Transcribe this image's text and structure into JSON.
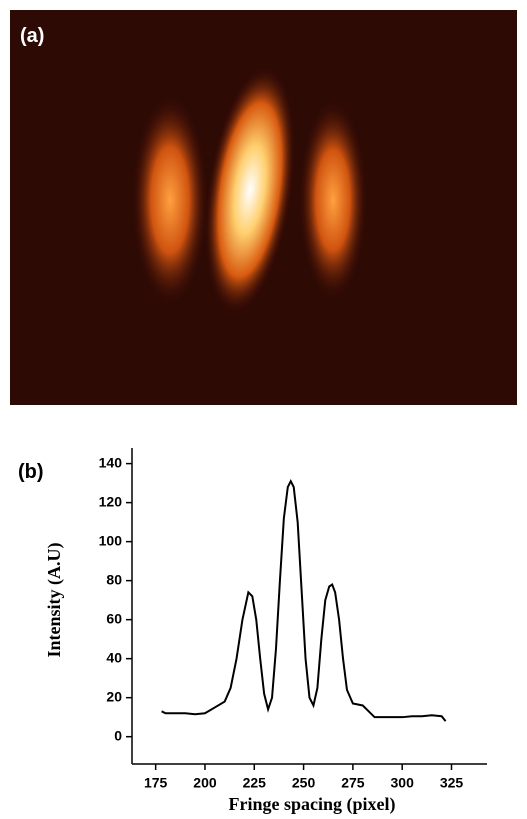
{
  "image": {
    "label": "(a)"
  },
  "chart_data": {
    "type": "line",
    "panel_label": "(b)",
    "x_label": "Fringe spacing (pixel)",
    "y_label": "Intensity (A.U)",
    "x": [
      178,
      180,
      185,
      190,
      195,
      200,
      205,
      210,
      213,
      216,
      219,
      222,
      224,
      226,
      228,
      230,
      232,
      234,
      236,
      238,
      240,
      242,
      243.5,
      245,
      247,
      249,
      251,
      253,
      255,
      257,
      259,
      261,
      263,
      264.5,
      266,
      268,
      270,
      272,
      275,
      280,
      283,
      286,
      290,
      295,
      300,
      305,
      310,
      315,
      320,
      322
    ],
    "values": [
      13,
      12,
      12,
      12,
      11.5,
      12,
      15,
      18,
      25,
      40,
      60,
      74,
      72,
      60,
      40,
      22,
      14,
      20,
      45,
      80,
      112,
      128,
      131,
      128,
      110,
      75,
      40,
      20,
      16,
      25,
      50,
      70,
      77,
      78,
      74,
      60,
      40,
      24,
      17,
      16,
      13,
      10,
      10,
      10,
      10,
      10.5,
      10.5,
      11,
      10.5,
      8
    ],
    "color": "#000000",
    "xlim": [
      163,
      343
    ],
    "ylim": [
      -14,
      148
    ],
    "xticks": [
      175,
      200,
      225,
      250,
      275,
      300,
      325
    ],
    "yticks": [
      0,
      20,
      40,
      60,
      80,
      100,
      120,
      140
    ]
  }
}
